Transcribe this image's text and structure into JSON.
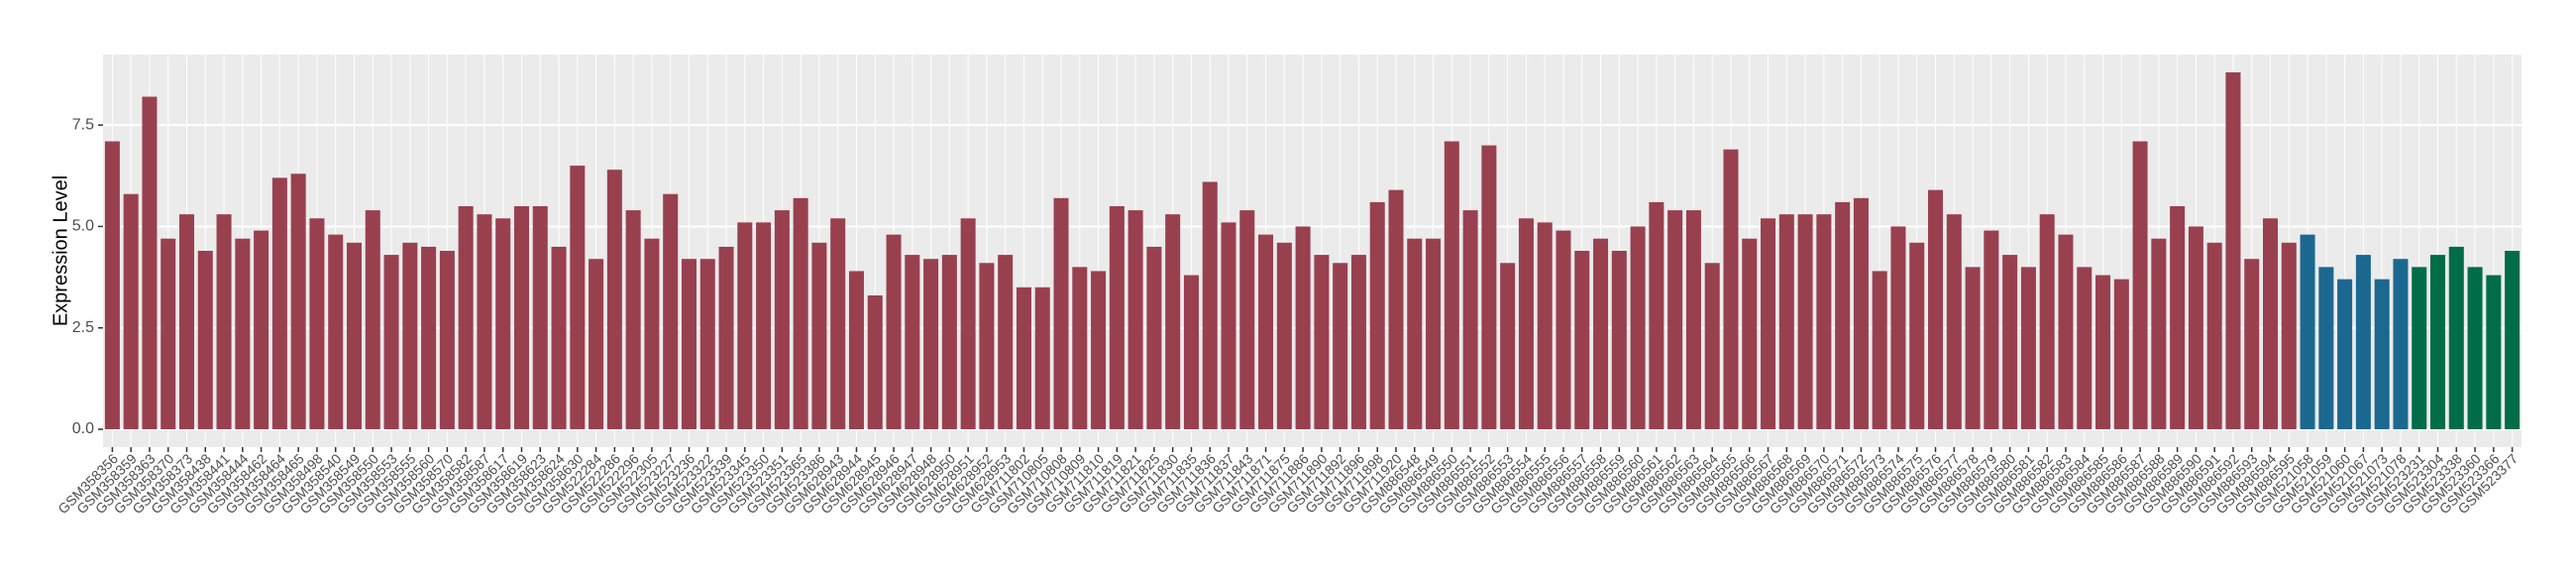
{
  "chart_data": {
    "type": "bar",
    "y_label": "Expression Level",
    "categories": [
      "GSM358356",
      "GSM358359",
      "GSM358363",
      "GSM358370",
      "GSM358373",
      "GSM358438",
      "GSM358441",
      "GSM358444",
      "GSM358462",
      "GSM358464",
      "GSM358465",
      "GSM358498",
      "GSM358540",
      "GSM358549",
      "GSM358550",
      "GSM358553",
      "GSM358555",
      "GSM358560",
      "GSM358570",
      "GSM358582",
      "GSM358587",
      "GSM358617",
      "GSM358619",
      "GSM358623",
      "GSM358624",
      "GSM358630",
      "GSM522284",
      "GSM522286",
      "GSM522296",
      "GSM522305",
      "GSM523227",
      "GSM523236",
      "GSM523322",
      "GSM523339",
      "GSM523345",
      "GSM523350",
      "GSM523351",
      "GSM523365",
      "GSM523386",
      "GSM628943",
      "GSM628944",
      "GSM628945",
      "GSM628946",
      "GSM628947",
      "GSM628948",
      "GSM628950",
      "GSM628951",
      "GSM628952",
      "GSM628953",
      "GSM711802",
      "GSM710805",
      "GSM710808",
      "GSM710809",
      "GSM711810",
      "GSM711819",
      "GSM711821",
      "GSM711825",
      "GSM711830",
      "GSM711835",
      "GSM711836",
      "GSM711837",
      "GSM711843",
      "GSM711871",
      "GSM711875",
      "GSM711886",
      "GSM711890",
      "GSM711892",
      "GSM711896",
      "GSM711898",
      "GSM711920",
      "GSM886548",
      "GSM886549",
      "GSM886550",
      "GSM886551",
      "GSM886552",
      "GSM886553",
      "GSM886554",
      "GSM886555",
      "GSM886556",
      "GSM886557",
      "GSM886558",
      "GSM886559",
      "GSM886560",
      "GSM886561",
      "GSM886562",
      "GSM886563",
      "GSM886564",
      "GSM886565",
      "GSM886566",
      "GSM886567",
      "GSM886568",
      "GSM886569",
      "GSM886570",
      "GSM886571",
      "GSM886572",
      "GSM886573",
      "GSM886574",
      "GSM886575",
      "GSM886576",
      "GSM886577",
      "GSM886578",
      "GSM886579",
      "GSM886580",
      "GSM886581",
      "GSM886582",
      "GSM886583",
      "GSM886584",
      "GSM886585",
      "GSM886586",
      "GSM886587",
      "GSM886588",
      "GSM886589",
      "GSM886590",
      "GSM886591",
      "GSM886592",
      "GSM886593",
      "GSM886594",
      "GSM886595",
      "GSM521058",
      "GSM521059",
      "GSM521060",
      "GSM521067",
      "GSM521073",
      "GSM521078",
      "GSM523231",
      "GSM523304",
      "GSM523338",
      "GSM523360",
      "GSM523366",
      "GSM523377"
    ],
    "values": [
      7.1,
      5.8,
      8.2,
      4.7,
      5.3,
      4.4,
      5.3,
      4.7,
      4.9,
      6.2,
      6.3,
      5.2,
      4.8,
      4.6,
      5.4,
      4.3,
      4.6,
      4.5,
      4.4,
      5.5,
      5.3,
      5.2,
      5.5,
      5.5,
      4.5,
      6.5,
      4.2,
      6.4,
      5.4,
      4.7,
      5.8,
      4.2,
      4.2,
      4.5,
      5.1,
      5.1,
      5.4,
      5.7,
      4.6,
      5.2,
      3.9,
      3.3,
      4.8,
      4.3,
      4.2,
      4.3,
      5.2,
      4.1,
      4.3,
      3.5,
      3.5,
      5.7,
      4.0,
      3.9,
      5.5,
      5.4,
      4.5,
      5.3,
      3.8,
      6.1,
      5.1,
      5.4,
      4.8,
      4.6,
      5.0,
      4.3,
      4.1,
      4.3,
      5.6,
      5.9,
      4.7,
      4.7,
      7.1,
      5.4,
      7.0,
      4.1,
      5.2,
      5.1,
      4.9,
      4.4,
      4.7,
      4.4,
      5.0,
      5.6,
      5.4,
      5.4,
      4.1,
      6.9,
      4.7,
      5.2,
      5.3,
      5.3,
      5.3,
      5.6,
      5.7,
      3.9,
      5.0,
      4.6,
      5.9,
      5.3,
      4.0,
      4.9,
      4.3,
      4.0,
      5.3,
      4.8,
      4.0,
      3.8,
      3.7,
      7.1,
      4.7,
      5.5,
      5.0,
      4.6,
      8.8,
      4.2,
      5.2,
      4.6,
      4.8,
      4.0,
      3.7,
      4.3,
      3.7,
      4.2,
      4.0,
      4.3,
      4.5,
      4.0,
      3.8,
      4.4
    ],
    "colors": [
      "#99404f",
      "#99404f",
      "#99404f",
      "#99404f",
      "#99404f",
      "#99404f",
      "#99404f",
      "#99404f",
      "#99404f",
      "#99404f",
      "#99404f",
      "#99404f",
      "#99404f",
      "#99404f",
      "#99404f",
      "#99404f",
      "#99404f",
      "#99404f",
      "#99404f",
      "#99404f",
      "#99404f",
      "#99404f",
      "#99404f",
      "#99404f",
      "#99404f",
      "#99404f",
      "#99404f",
      "#99404f",
      "#99404f",
      "#99404f",
      "#99404f",
      "#99404f",
      "#99404f",
      "#99404f",
      "#99404f",
      "#99404f",
      "#99404f",
      "#99404f",
      "#99404f",
      "#99404f",
      "#99404f",
      "#99404f",
      "#99404f",
      "#99404f",
      "#99404f",
      "#99404f",
      "#99404f",
      "#99404f",
      "#99404f",
      "#99404f",
      "#99404f",
      "#99404f",
      "#99404f",
      "#99404f",
      "#99404f",
      "#99404f",
      "#99404f",
      "#99404f",
      "#99404f",
      "#99404f",
      "#99404f",
      "#99404f",
      "#99404f",
      "#99404f",
      "#99404f",
      "#99404f",
      "#99404f",
      "#99404f",
      "#99404f",
      "#99404f",
      "#99404f",
      "#99404f",
      "#99404f",
      "#99404f",
      "#99404f",
      "#99404f",
      "#99404f",
      "#99404f",
      "#99404f",
      "#99404f",
      "#99404f",
      "#99404f",
      "#99404f",
      "#99404f",
      "#99404f",
      "#99404f",
      "#99404f",
      "#99404f",
      "#99404f",
      "#99404f",
      "#99404f",
      "#99404f",
      "#99404f",
      "#99404f",
      "#99404f",
      "#99404f",
      "#99404f",
      "#99404f",
      "#99404f",
      "#99404f",
      "#99404f",
      "#99404f",
      "#99404f",
      "#99404f",
      "#99404f",
      "#99404f",
      "#99404f",
      "#99404f",
      "#99404f",
      "#99404f",
      "#99404f",
      "#99404f",
      "#99404f",
      "#99404f",
      "#99404f",
      "#99404f",
      "#99404f",
      "#99404f",
      "#1b6890",
      "#1b6890",
      "#1b6890",
      "#1b6890",
      "#1b6890",
      "#1b6890",
      "#006d48",
      "#006d48",
      "#006d48",
      "#006d48",
      "#006d48",
      "#006d48"
    ],
    "ylim": [
      -0.44,
      9.24
    ],
    "yticks": [
      {
        "value": 0,
        "label": "0.0"
      },
      2.5,
      {
        "value": 5,
        "label": "5.0"
      },
      {
        "value": 7.5,
        "label": "7.5"
      }
    ],
    "grid": true
  }
}
